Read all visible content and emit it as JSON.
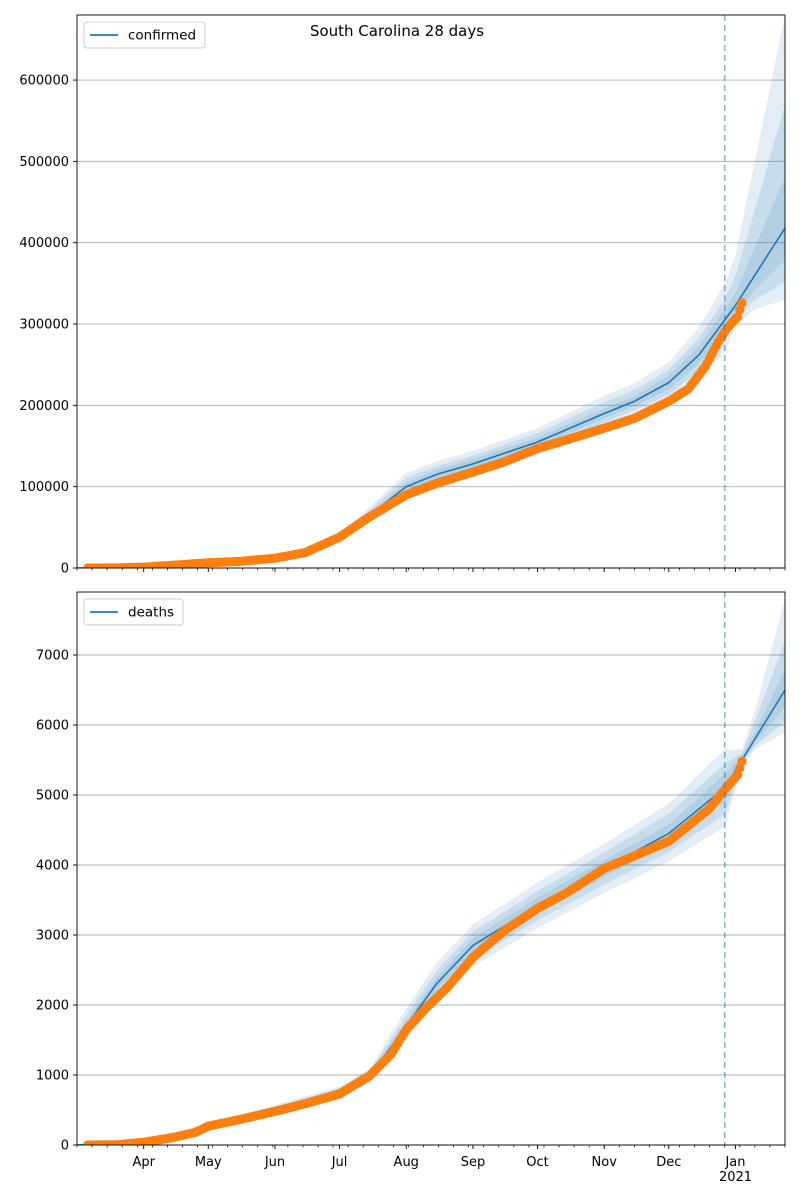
{
  "figure": {
    "title": "South Carolina 28 days"
  },
  "colors": {
    "model_line": "#1f77b4",
    "observed_points": "#ff7f0e",
    "band": "#1f77b4",
    "grid": "#b0b0b0",
    "forecast_marker": "#1f77b4"
  },
  "chart_data": [
    {
      "type": "line",
      "name": "confirmed",
      "legend": [
        "confirmed"
      ],
      "legend_position": "top-left",
      "title": "South Carolina 28 days",
      "x_axis": {
        "type": "date",
        "range": [
          "2020-03-01",
          "2021-01-24"
        ],
        "major_ticks": [
          "2020-04-01",
          "2020-05-01",
          "2020-06-01",
          "2020-07-01",
          "2020-08-01",
          "2020-09-01",
          "2020-10-01",
          "2020-11-01",
          "2020-12-01",
          "2021-01-01"
        ],
        "tick_labels": [],
        "labels_visible": false
      },
      "y_axis": {
        "range": [
          0,
          680000
        ],
        "ticks": [
          0,
          100000,
          200000,
          300000,
          400000,
          500000,
          600000
        ],
        "tick_labels": [
          "0",
          "100000",
          "200000",
          "300000",
          "400000",
          "500000",
          "600000"
        ],
        "grid": true
      },
      "forecast_start": "2020-12-27",
      "model": {
        "x": [
          "2020-03-01",
          "2020-04-01",
          "2020-05-01",
          "2020-06-01",
          "2020-06-15",
          "2020-07-01",
          "2020-07-15",
          "2020-08-01",
          "2020-08-15",
          "2020-09-01",
          "2020-10-01",
          "2020-11-01",
          "2020-11-15",
          "2020-12-01",
          "2020-12-15",
          "2020-12-27",
          "2021-01-01",
          "2021-01-10",
          "2021-01-24"
        ],
        "y": [
          0,
          1000,
          6000,
          12000,
          20000,
          38000,
          65000,
          100000,
          115000,
          128000,
          155000,
          190000,
          205000,
          228000,
          262000,
          305000,
          323000,
          360000,
          418000
        ],
        "bands": [
          {
            "lower": [
              0,
              800,
              5000,
              10500,
              17500,
              34000,
              57000,
              86000,
              100000,
              113000,
              139000,
              173000,
              188000,
              205000,
              232000,
              265000,
              298000,
              318000,
              330000
            ],
            "upper": [
              0,
              1200,
              7000,
              13500,
              22500,
              42000,
              75000,
              117000,
              131000,
              144000,
              172000,
              212000,
              227000,
              253000,
              296000,
              350000,
              385000,
              500000,
              680000
            ]
          },
          {
            "lower": [
              0,
              850,
              5300,
              11000,
              18500,
              35500,
              60000,
              91000,
              105500,
              118000,
              145000,
              179000,
              194000,
              213000,
              243000,
              278000,
              305000,
              330000,
              352000
            ],
            "upper": [
              0,
              1150,
              6700,
              13000,
              21500,
              40500,
              71000,
              111000,
              125000,
              138000,
              166000,
              204000,
              219000,
              244000,
              283000,
              330000,
              360000,
              440000,
              570000
            ]
          },
          {
            "lower": [
              0,
              900,
              5600,
              11400,
              19200,
              36700,
              62300,
              95000,
              109500,
              122500,
              149500,
              184000,
              199000,
              219500,
              251500,
              290000,
              312000,
              342000,
              378000
            ],
            "upper": [
              0,
              1100,
              6400,
              12600,
              20800,
              39300,
              67700,
              105000,
              120500,
              133500,
              160500,
              196000,
              211000,
              236500,
              272500,
              318000,
              338000,
              395000,
              480000
            ]
          }
        ]
      },
      "observed": {
        "x": [
          "2020-03-06",
          "2020-03-20",
          "2020-04-01",
          "2020-04-15",
          "2020-05-01",
          "2020-05-15",
          "2020-06-01",
          "2020-06-15",
          "2020-07-01",
          "2020-07-15",
          "2020-08-01",
          "2020-08-15",
          "2020-09-01",
          "2020-09-15",
          "2020-10-01",
          "2020-10-15",
          "2020-11-01",
          "2020-11-15",
          "2020-12-01",
          "2020-12-10",
          "2020-12-18",
          "2020-12-24",
          "2020-12-28",
          "2021-01-02",
          "2021-01-04"
        ],
        "y": [
          2,
          200,
          1100,
          3500,
          6500,
          8000,
          12000,
          19000,
          38000,
          63000,
          90000,
          104000,
          118000,
          130000,
          147000,
          158000,
          172000,
          184000,
          205000,
          220000,
          248000,
          278000,
          295000,
          309000,
          326000
        ]
      }
    },
    {
      "type": "line",
      "name": "deaths",
      "legend": [
        "deaths"
      ],
      "legend_position": "top-left",
      "x_axis": {
        "type": "date",
        "range": [
          "2020-03-01",
          "2021-01-24"
        ],
        "major_ticks": [
          "2020-04-01",
          "2020-05-01",
          "2020-06-01",
          "2020-07-01",
          "2020-08-01",
          "2020-09-01",
          "2020-10-01",
          "2020-11-01",
          "2020-12-01",
          "2021-01-01"
        ],
        "tick_labels": [
          "Apr",
          "May",
          "Jun",
          "Jul",
          "Aug",
          "Sep",
          "Oct",
          "Nov",
          "Dec",
          "Jan\n2021"
        ],
        "labels_visible": true
      },
      "y_axis": {
        "range": [
          0,
          7900
        ],
        "ticks": [
          0,
          1000,
          2000,
          3000,
          4000,
          5000,
          6000,
          7000
        ],
        "tick_labels": [
          "0",
          "1000",
          "2000",
          "3000",
          "4000",
          "5000",
          "6000",
          "7000"
        ],
        "grid": true
      },
      "forecast_start": "2020-12-27",
      "model": {
        "x": [
          "2020-03-01",
          "2020-04-01",
          "2020-05-01",
          "2020-06-01",
          "2020-07-01",
          "2020-07-15",
          "2020-08-01",
          "2020-08-15",
          "2020-09-01",
          "2020-10-01",
          "2020-11-01",
          "2020-12-01",
          "2020-12-27",
          "2021-01-04",
          "2021-01-10",
          "2021-01-24"
        ],
        "y": [
          0,
          40,
          260,
          510,
          750,
          980,
          1700,
          2300,
          2850,
          3420,
          3950,
          4450,
          5100,
          5500,
          5800,
          6500
        ],
        "bands": [
          {
            "lower": [
              0,
              30,
              210,
              450,
              670,
              880,
              1500,
              2050,
              2550,
              3100,
              3600,
              4050,
              4550,
              5400,
              5650,
              5900
            ],
            "upper": [
              0,
              55,
              310,
              570,
              840,
              1090,
              1950,
              2600,
              3150,
              3750,
              4300,
              4880,
              5650,
              5650,
              6200,
              7800
            ]
          },
          {
            "lower": [
              0,
              33,
              225,
              470,
              695,
              910,
              1570,
              2130,
              2650,
              3210,
              3720,
              4190,
              4720,
              5430,
              5700,
              6050
            ],
            "upper": [
              0,
              50,
              295,
              550,
              810,
              1050,
              1850,
              2480,
              3050,
              3630,
              4180,
              4730,
              5450,
              5600,
              6050,
              7200
            ]
          },
          {
            "lower": [
              0,
              36,
              240,
              490,
              720,
              945,
              1635,
              2215,
              2750,
              3310,
              3830,
              4320,
              4900,
              5460,
              5750,
              6250
            ],
            "upper": [
              0,
              45,
              280,
              530,
              780,
              1015,
              1770,
              2390,
              2950,
              3530,
              4070,
              4580,
              5300,
              5560,
              5900,
              6800
            ]
          }
        ]
      },
      "observed": {
        "x": [
          "2020-03-06",
          "2020-03-20",
          "2020-04-01",
          "2020-04-15",
          "2020-04-25",
          "2020-05-01",
          "2020-05-15",
          "2020-06-01",
          "2020-06-15",
          "2020-07-01",
          "2020-07-15",
          "2020-07-25",
          "2020-08-01",
          "2020-08-10",
          "2020-08-20",
          "2020-09-01",
          "2020-09-15",
          "2020-10-01",
          "2020-10-15",
          "2020-11-01",
          "2020-11-15",
          "2020-12-01",
          "2020-12-10",
          "2020-12-20",
          "2020-12-27",
          "2021-01-02",
          "2021-01-04"
        ],
        "y": [
          0,
          5,
          40,
          110,
          180,
          270,
          360,
          480,
          590,
          730,
          990,
          1300,
          1650,
          1950,
          2250,
          2680,
          3050,
          3380,
          3610,
          3950,
          4130,
          4340,
          4560,
          4810,
          5080,
          5290,
          5480
        ]
      }
    }
  ]
}
